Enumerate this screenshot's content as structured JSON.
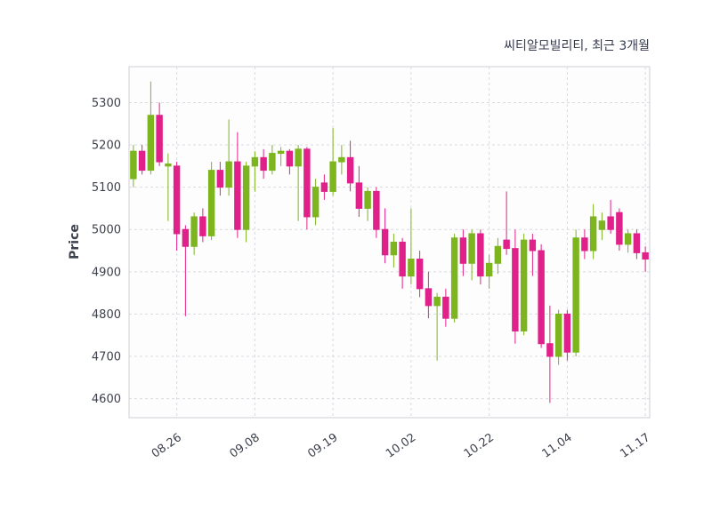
{
  "title": "씨티알모빌리티, 최근 3개월",
  "ylabel": "Price",
  "colors": {
    "up": "#7cb51e",
    "down": "#e0218a",
    "grid": "#d9d9e2",
    "plot_border": "#cfcfd6",
    "plot_bg": "#fdfdfe",
    "tick_text": "#3d414d",
    "title_text": "#373d50"
  },
  "chart_data": {
    "type": "candlestick",
    "title": "씨티알모빌리티, 최근 3개월",
    "ylabel": "Price",
    "ylim": [
      4555,
      5385
    ],
    "y_ticks": [
      4600,
      4700,
      4800,
      4900,
      5000,
      5100,
      5200,
      5300
    ],
    "x_tick_labels": [
      "08.26",
      "09.08",
      "09.19",
      "10.02",
      "10.22",
      "11.04",
      "11.17"
    ],
    "x_tick_indices": [
      5,
      14,
      23,
      32,
      41,
      50,
      59
    ],
    "grid": "dashed",
    "legend": null,
    "candles": [
      [
        5120,
        5200,
        5100,
        5185
      ],
      [
        5185,
        5200,
        5130,
        5140
      ],
      [
        5140,
        5350,
        5130,
        5270
      ],
      [
        5270,
        5300,
        5150,
        5160
      ],
      [
        5150,
        5180,
        5020,
        5155
      ],
      [
        5150,
        5160,
        4950,
        4990
      ],
      [
        5000,
        5010,
        4795,
        4960
      ],
      [
        4960,
        5040,
        4940,
        5030
      ],
      [
        5030,
        5050,
        4970,
        4985
      ],
      [
        4985,
        5160,
        4975,
        5140
      ],
      [
        5140,
        5160,
        5080,
        5100
      ],
      [
        5100,
        5260,
        5080,
        5160
      ],
      [
        5160,
        5230,
        4980,
        5000
      ],
      [
        5000,
        5160,
        4970,
        5150
      ],
      [
        5150,
        5185,
        5090,
        5170
      ],
      [
        5170,
        5190,
        5120,
        5140
      ],
      [
        5140,
        5200,
        5130,
        5180
      ],
      [
        5180,
        5195,
        5150,
        5185
      ],
      [
        5185,
        5190,
        5130,
        5150
      ],
      [
        5150,
        5200,
        5020,
        5190
      ],
      [
        5190,
        5195,
        5000,
        5030
      ],
      [
        5030,
        5120,
        5010,
        5100
      ],
      [
        5110,
        5130,
        5070,
        5090
      ],
      [
        5090,
        5240,
        5080,
        5160
      ],
      [
        5160,
        5200,
        5130,
        5170
      ],
      [
        5170,
        5210,
        5090,
        5110
      ],
      [
        5110,
        5150,
        5030,
        5050
      ],
      [
        5050,
        5100,
        5020,
        5090
      ],
      [
        5090,
        5100,
        4980,
        5000
      ],
      [
        5000,
        5050,
        4920,
        4940
      ],
      [
        4940,
        4990,
        4910,
        4970
      ],
      [
        4970,
        4980,
        4860,
        4890
      ],
      [
        4890,
        5050,
        4870,
        4930
      ],
      [
        4930,
        4950,
        4840,
        4860
      ],
      [
        4860,
        4900,
        4790,
        4820
      ],
      [
        4820,
        4850,
        4690,
        4840
      ],
      [
        4840,
        4860,
        4770,
        4790
      ],
      [
        4790,
        4990,
        4780,
        4980
      ],
      [
        4980,
        5000,
        4890,
        4920
      ],
      [
        4920,
        5000,
        4880,
        4990
      ],
      [
        4990,
        5000,
        4870,
        4890
      ],
      [
        4890,
        4940,
        4860,
        4920
      ],
      [
        4920,
        4980,
        4895,
        4960
      ],
      [
        4975,
        5090,
        4940,
        4955
      ],
      [
        4955,
        5000,
        4730,
        4760
      ],
      [
        4760,
        4990,
        4750,
        4975
      ],
      [
        4975,
        4990,
        4890,
        4950
      ],
      [
        4950,
        4965,
        4720,
        4730
      ],
      [
        4730,
        4820,
        4590,
        4700
      ],
      [
        4700,
        4810,
        4680,
        4800
      ],
      [
        4800,
        4810,
        4690,
        4710
      ],
      [
        4710,
        5000,
        4700,
        4980
      ],
      [
        4980,
        5000,
        4930,
        4950
      ],
      [
        4950,
        5060,
        4930,
        5030
      ],
      [
        5000,
        5040,
        4975,
        5020
      ],
      [
        5030,
        5070,
        4990,
        5000
      ],
      [
        5040,
        5050,
        4950,
        4965
      ],
      [
        4965,
        5000,
        4945,
        4990
      ],
      [
        4990,
        5000,
        4930,
        4945
      ],
      [
        4945,
        4960,
        4900,
        4930
      ]
    ]
  }
}
